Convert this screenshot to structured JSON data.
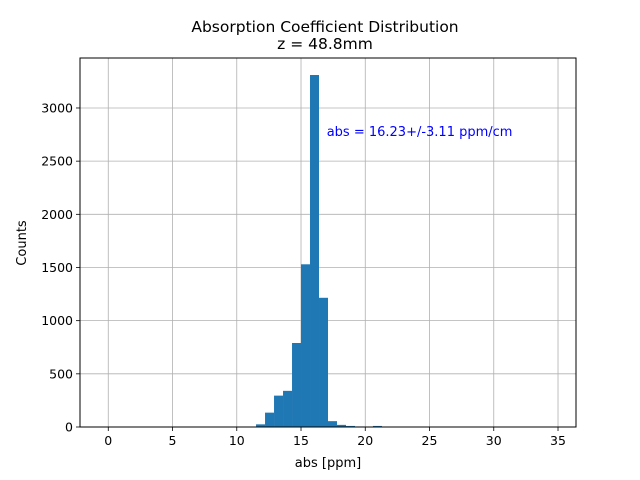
{
  "chart_data": {
    "type": "bar",
    "title": "Absorption Coefficient Distribution",
    "subtitle": "z = 48.8mm",
    "xlabel": "abs [ppm]",
    "ylabel": "Counts",
    "xlim": [
      -2.2,
      36.4
    ],
    "ylim": [
      0,
      3470
    ],
    "grid": true,
    "bar_color": "#1f77b4",
    "annotation_color": "#0000ff",
    "annotation": {
      "text": "abs = 16.23+/-3.11 ppm/cm",
      "x": 17.0,
      "y": 2780
    },
    "x_ticks": [
      0,
      5,
      10,
      15,
      20,
      25,
      30,
      35
    ],
    "x_tick_labels": [
      "0",
      "5",
      "10",
      "15",
      "20",
      "25",
      "30",
      "35"
    ],
    "y_ticks": [
      0,
      500,
      1000,
      1500,
      2000,
      2500,
      3000
    ],
    "y_tick_labels": [
      "0",
      "500",
      "1000",
      "1500",
      "2000",
      "2500",
      "3000"
    ],
    "bin_edges": [
      11.5,
      12.2,
      12.9,
      13.6,
      14.3,
      15.0,
      15.7,
      16.4,
      17.1,
      17.8,
      18.5,
      19.2,
      19.9,
      20.6,
      21.3
    ],
    "counts": [
      25,
      135,
      295,
      340,
      790,
      1530,
      3310,
      1215,
      55,
      20,
      10,
      5,
      0,
      10
    ]
  }
}
